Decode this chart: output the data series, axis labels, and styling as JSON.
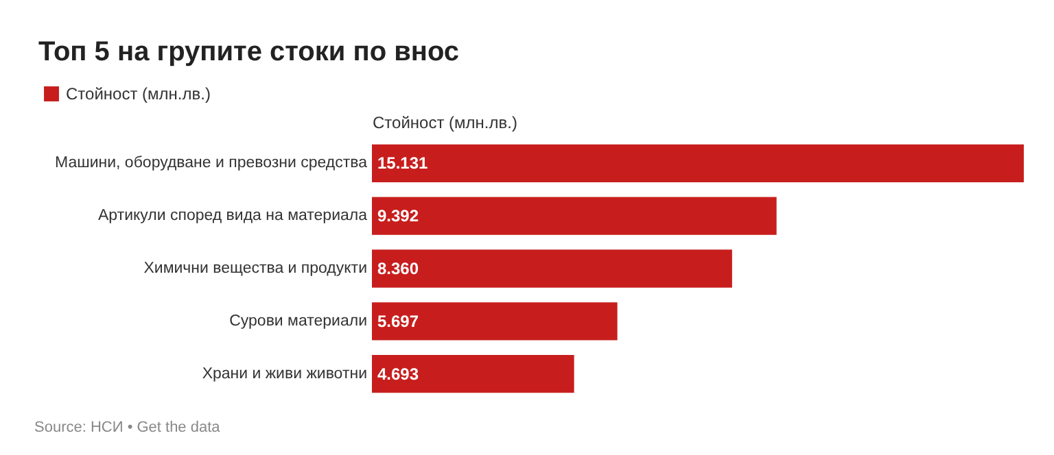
{
  "chart_data": {
    "type": "bar",
    "orientation": "horizontal",
    "title": "Топ 5 на групите стоки по внос",
    "xlabel": "Стойност (млн.лв.)",
    "categories": [
      "Машини, оборудване и превозни средства",
      "Артикули според вида на материала",
      "Химични вещества и продукти",
      "Сурови материали",
      "Храни и живи животни"
    ],
    "series": [
      {
        "name": "Стойност (млн.лв.)",
        "color": "#c71e1d",
        "values": [
          15.131,
          9.392,
          8.36,
          5.697,
          4.693
        ],
        "value_labels": [
          "15.131",
          "9.392",
          "8.360",
          "5.697",
          "4.693"
        ]
      }
    ],
    "tick_labels": "y",
    "legend": "top left",
    "annotations": [
      "Source: НСИ • Get the data"
    ]
  }
}
